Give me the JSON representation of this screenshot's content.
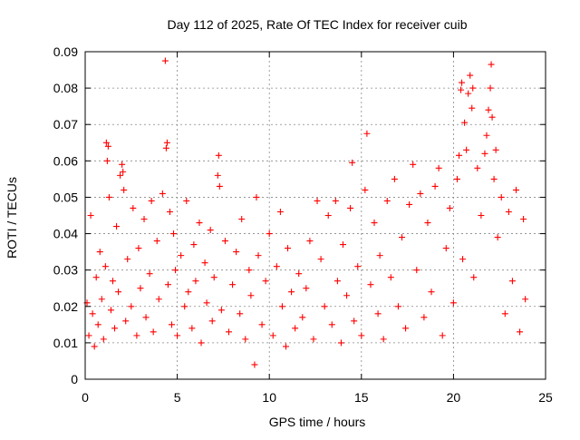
{
  "chart_data": {
    "type": "scatter",
    "title": "Day 112 of 2025, Rate Of TEC Index for receiver cuib",
    "xlabel": "GPS time / hours",
    "ylabel": "ROTI / TECUs",
    "xlim": [
      0,
      25
    ],
    "ylim": [
      0,
      0.09
    ],
    "xticks": [
      {
        "value": 0,
        "label": "0"
      },
      {
        "value": 5,
        "label": "5"
      },
      {
        "value": 10,
        "label": "10"
      },
      {
        "value": 15,
        "label": "15"
      },
      {
        "value": 20,
        "label": "20"
      },
      {
        "value": 25,
        "label": "25"
      }
    ],
    "yticks": [
      {
        "value": 0,
        "label": "0"
      },
      {
        "value": 0.01,
        "label": "0.01"
      },
      {
        "value": 0.02,
        "label": "0.02"
      },
      {
        "value": 0.03,
        "label": "0.03"
      },
      {
        "value": 0.04,
        "label": "0.04"
      },
      {
        "value": 0.05,
        "label": "0.05"
      },
      {
        "value": 0.06,
        "label": "0.06"
      },
      {
        "value": 0.07,
        "label": "0.07"
      },
      {
        "value": 0.08,
        "label": "0.08"
      },
      {
        "value": 0.09,
        "label": "0.09"
      }
    ],
    "grid": true,
    "marker": "plus",
    "color": "#ff0000",
    "series": [
      {
        "name": "ROTI",
        "points": [
          [
            0.1,
            0.021
          ],
          [
            0.2,
            0.012
          ],
          [
            0.3,
            0.045
          ],
          [
            0.4,
            0.018
          ],
          [
            0.5,
            0.009
          ],
          [
            0.6,
            0.028
          ],
          [
            0.7,
            0.015
          ],
          [
            0.8,
            0.035
          ],
          [
            0.9,
            0.022
          ],
          [
            1.0,
            0.011
          ],
          [
            1.1,
            0.031
          ],
          [
            1.15,
            0.065
          ],
          [
            1.2,
            0.06
          ],
          [
            1.25,
            0.064
          ],
          [
            1.3,
            0.05
          ],
          [
            1.4,
            0.019
          ],
          [
            1.5,
            0.027
          ],
          [
            1.6,
            0.014
          ],
          [
            1.7,
            0.042
          ],
          [
            1.8,
            0.024
          ],
          [
            1.9,
            0.056
          ],
          [
            2.0,
            0.059
          ],
          [
            2.05,
            0.057
          ],
          [
            2.1,
            0.052
          ],
          [
            2.2,
            0.016
          ],
          [
            2.3,
            0.033
          ],
          [
            2.5,
            0.02
          ],
          [
            2.6,
            0.047
          ],
          [
            2.8,
            0.012
          ],
          [
            2.9,
            0.036
          ],
          [
            3.0,
            0.025
          ],
          [
            3.2,
            0.044
          ],
          [
            3.3,
            0.017
          ],
          [
            3.5,
            0.029
          ],
          [
            3.6,
            0.049
          ],
          [
            3.7,
            0.013
          ],
          [
            3.9,
            0.038
          ],
          [
            4.0,
            0.022
          ],
          [
            4.2,
            0.051
          ],
          [
            4.35,
            0.0875
          ],
          [
            4.4,
            0.0635
          ],
          [
            4.45,
            0.065
          ],
          [
            4.5,
            0.026
          ],
          [
            4.6,
            0.046
          ],
          [
            4.7,
            0.015
          ],
          [
            4.8,
            0.04
          ],
          [
            4.9,
            0.03
          ],
          [
            5.0,
            0.012
          ],
          [
            5.2,
            0.034
          ],
          [
            5.4,
            0.02
          ],
          [
            5.5,
            0.049
          ],
          [
            5.6,
            0.024
          ],
          [
            5.8,
            0.014
          ],
          [
            5.9,
            0.037
          ],
          [
            6.0,
            0.027
          ],
          [
            6.2,
            0.043
          ],
          [
            6.3,
            0.01
          ],
          [
            6.5,
            0.032
          ],
          [
            6.6,
            0.021
          ],
          [
            6.8,
            0.041
          ],
          [
            6.9,
            0.016
          ],
          [
            7.0,
            0.028
          ],
          [
            7.2,
            0.056
          ],
          [
            7.25,
            0.0615
          ],
          [
            7.3,
            0.053
          ],
          [
            7.4,
            0.019
          ],
          [
            7.6,
            0.038
          ],
          [
            7.8,
            0.013
          ],
          [
            8.0,
            0.026
          ],
          [
            8.2,
            0.035
          ],
          [
            8.4,
            0.018
          ],
          [
            8.5,
            0.044
          ],
          [
            8.7,
            0.011
          ],
          [
            8.9,
            0.03
          ],
          [
            9.0,
            0.023
          ],
          [
            9.2,
            0.004
          ],
          [
            9.3,
            0.05
          ],
          [
            9.4,
            0.034
          ],
          [
            9.6,
            0.015
          ],
          [
            9.8,
            0.027
          ],
          [
            10.0,
            0.04
          ],
          [
            10.2,
            0.012
          ],
          [
            10.4,
            0.031
          ],
          [
            10.6,
            0.046
          ],
          [
            10.7,
            0.02
          ],
          [
            10.9,
            0.009
          ],
          [
            11.0,
            0.036
          ],
          [
            11.2,
            0.024
          ],
          [
            11.4,
            0.014
          ],
          [
            11.6,
            0.029
          ],
          [
            11.8,
            0.017
          ],
          [
            12.0,
            0.025
          ],
          [
            12.2,
            0.038
          ],
          [
            12.4,
            0.011
          ],
          [
            12.6,
            0.049
          ],
          [
            12.8,
            0.033
          ],
          [
            13.0,
            0.02
          ],
          [
            13.2,
            0.045
          ],
          [
            13.4,
            0.015
          ],
          [
            13.6,
            0.049
          ],
          [
            13.7,
            0.027
          ],
          [
            13.9,
            0.01
          ],
          [
            14.0,
            0.037
          ],
          [
            14.2,
            0.023
          ],
          [
            14.4,
            0.047
          ],
          [
            14.5,
            0.0595
          ],
          [
            14.6,
            0.016
          ],
          [
            14.8,
            0.031
          ],
          [
            15.0,
            0.012
          ],
          [
            15.2,
            0.052
          ],
          [
            15.3,
            0.0675
          ],
          [
            15.5,
            0.026
          ],
          [
            15.7,
            0.043
          ],
          [
            15.9,
            0.018
          ],
          [
            16.0,
            0.034
          ],
          [
            16.2,
            0.011
          ],
          [
            16.4,
            0.049
          ],
          [
            16.6,
            0.028
          ],
          [
            16.8,
            0.055
          ],
          [
            17.0,
            0.02
          ],
          [
            17.2,
            0.039
          ],
          [
            17.4,
            0.014
          ],
          [
            17.6,
            0.048
          ],
          [
            17.8,
            0.059
          ],
          [
            18.0,
            0.03
          ],
          [
            18.2,
            0.051
          ],
          [
            18.4,
            0.017
          ],
          [
            18.6,
            0.043
          ],
          [
            18.8,
            0.024
          ],
          [
            19.0,
            0.053
          ],
          [
            19.2,
            0.058
          ],
          [
            19.4,
            0.012
          ],
          [
            19.6,
            0.036
          ],
          [
            19.8,
            0.047
          ],
          [
            20.0,
            0.021
          ],
          [
            20.2,
            0.055
          ],
          [
            20.3,
            0.0615
          ],
          [
            20.4,
            0.0795
          ],
          [
            20.45,
            0.0815
          ],
          [
            20.5,
            0.033
          ],
          [
            20.6,
            0.0705
          ],
          [
            20.7,
            0.063
          ],
          [
            20.8,
            0.0785
          ],
          [
            20.9,
            0.0835
          ],
          [
            21.0,
            0.0745
          ],
          [
            21.05,
            0.08
          ],
          [
            21.1,
            0.028
          ],
          [
            21.3,
            0.058
          ],
          [
            21.5,
            0.045
          ],
          [
            21.7,
            0.062
          ],
          [
            21.8,
            0.067
          ],
          [
            21.9,
            0.074
          ],
          [
            22.0,
            0.08
          ],
          [
            22.05,
            0.0865
          ],
          [
            22.1,
            0.072
          ],
          [
            22.2,
            0.055
          ],
          [
            22.3,
            0.063
          ],
          [
            22.4,
            0.039
          ],
          [
            22.6,
            0.05
          ],
          [
            22.8,
            0.018
          ],
          [
            23.0,
            0.046
          ],
          [
            23.2,
            0.027
          ],
          [
            23.4,
            0.052
          ],
          [
            23.6,
            0.013
          ],
          [
            23.8,
            0.044
          ],
          [
            23.9,
            0.022
          ]
        ]
      }
    ]
  }
}
